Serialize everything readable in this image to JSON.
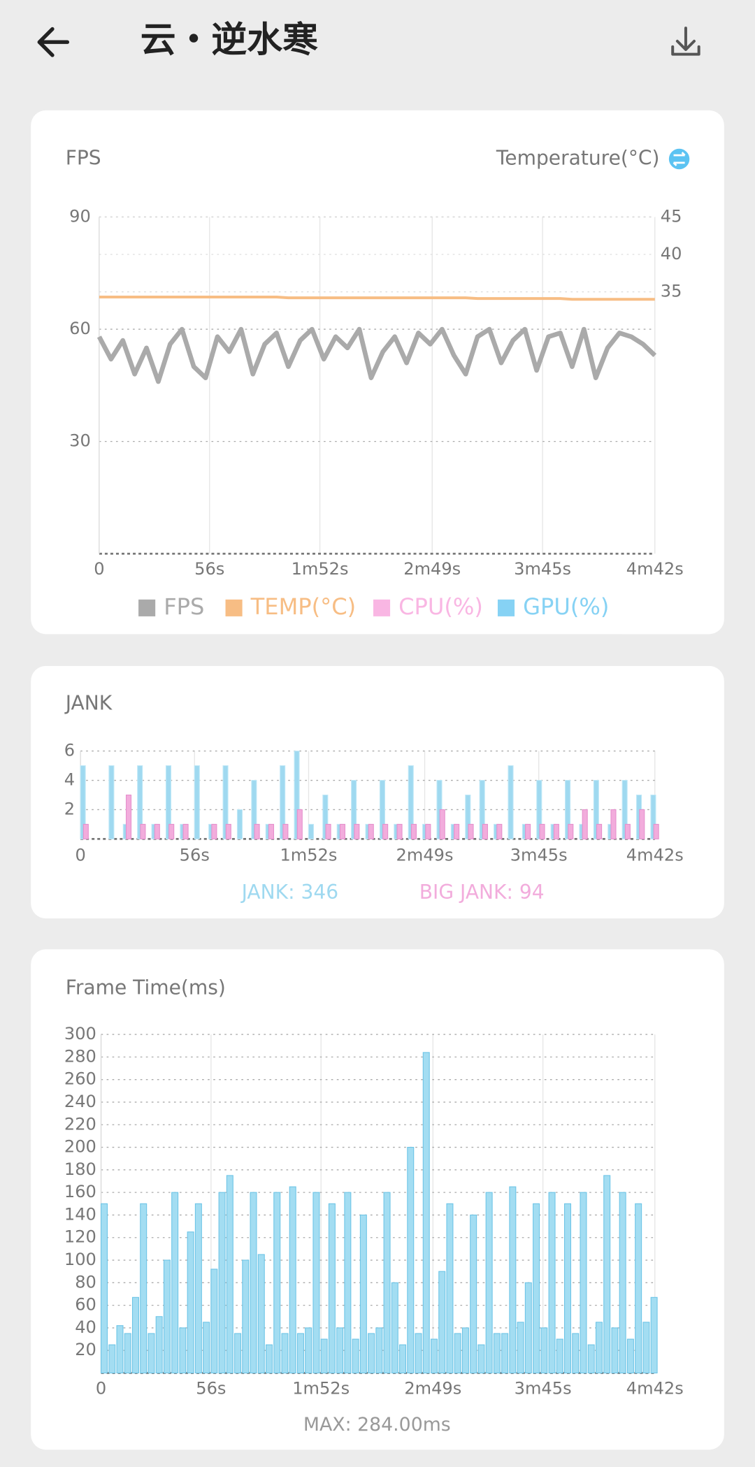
{
  "header": {
    "title": "云・逆水寒"
  },
  "chart_data": [
    {
      "type": "line",
      "title": "FPS",
      "y2_label": "Temperature(°C)",
      "x": [
        0,
        6,
        12,
        18,
        24,
        30,
        36,
        42,
        48,
        54,
        60,
        66,
        72,
        78,
        84,
        90,
        96,
        102,
        108,
        114,
        120,
        126,
        132,
        138,
        144,
        150,
        156,
        162,
        168,
        174,
        180,
        186,
        192,
        198,
        204,
        210,
        216,
        222,
        228,
        234,
        240,
        246,
        252,
        258,
        264,
        270,
        276,
        282
      ],
      "xlim": [
        0,
        282
      ],
      "xticks": [
        0,
        {
          "value": 56,
          "label": "56s"
        },
        {
          "value": 112,
          "label": "1m52s"
        },
        {
          "value": 169,
          "label": "2m49s"
        },
        {
          "value": 225,
          "label": "3m45s"
        },
        {
          "value": 282,
          "label": "4m42s"
        }
      ],
      "ylim": [
        0,
        90
      ],
      "yticks": [
        30,
        60,
        90
      ],
      "y2lim": [
        0,
        45
      ],
      "y2ticks": [
        35,
        40,
        45
      ],
      "grid": true,
      "legend": "bottom",
      "series": [
        {
          "name": "FPS",
          "color": "#aaaaaa",
          "values": [
            58,
            52,
            57,
            48,
            55,
            46,
            56,
            60,
            50,
            47,
            58,
            54,
            60,
            48,
            56,
            59,
            50,
            57,
            60,
            52,
            58,
            55,
            60,
            47,
            54,
            58,
            51,
            59,
            56,
            60,
            53,
            48,
            58,
            60,
            51,
            57,
            60,
            49,
            58,
            59,
            50,
            60,
            47,
            55,
            59,
            58,
            56,
            53
          ]
        },
        {
          "name": "TEMP(°C)",
          "color": "#f7bd84",
          "axis": "y2",
          "values": [
            34.3,
            34.3,
            34.3,
            34.3,
            34.3,
            34.3,
            34.3,
            34.3,
            34.3,
            34.3,
            34.3,
            34.3,
            34.3,
            34.3,
            34.3,
            34.3,
            34.2,
            34.2,
            34.2,
            34.2,
            34.2,
            34.2,
            34.2,
            34.2,
            34.2,
            34.2,
            34.2,
            34.2,
            34.2,
            34.2,
            34.2,
            34.2,
            34.1,
            34.1,
            34.1,
            34.1,
            34.1,
            34.1,
            34.1,
            34.1,
            34.0,
            34.0,
            34.0,
            34.0,
            34.0,
            34.0,
            34.0,
            34.0
          ]
        },
        {
          "name": "CPU(%)",
          "color": "#f9b6e3",
          "values": [
            null,
            null,
            null,
            null,
            null,
            null,
            null,
            null,
            null,
            null,
            null,
            null,
            null,
            null,
            null,
            null,
            null,
            null,
            null,
            null,
            null,
            null,
            null,
            null,
            null,
            null,
            null,
            null,
            null,
            null,
            null,
            null,
            null,
            null,
            null,
            null,
            null,
            null,
            null,
            null,
            null,
            null,
            null,
            null,
            null,
            null,
            null,
            null
          ]
        },
        {
          "name": "GPU(%)",
          "color": "#86d2f4",
          "values": [
            null,
            null,
            null,
            null,
            null,
            null,
            null,
            null,
            null,
            null,
            null,
            null,
            null,
            null,
            null,
            null,
            null,
            null,
            null,
            null,
            null,
            null,
            null,
            null,
            null,
            null,
            null,
            null,
            null,
            null,
            null,
            null,
            null,
            null,
            null,
            null,
            null,
            null,
            null,
            null,
            null,
            null,
            null,
            null,
            null,
            null,
            null,
            null
          ]
        }
      ]
    },
    {
      "type": "bar",
      "title": "JANK",
      "x": [
        0,
        7,
        14,
        21,
        28,
        35,
        42,
        49,
        56,
        63,
        70,
        77,
        84,
        91,
        98,
        105,
        112,
        119,
        126,
        133,
        140,
        147,
        154,
        161,
        168,
        175,
        182,
        189,
        196,
        203,
        210,
        217,
        224,
        231,
        238,
        245,
        252,
        259,
        266,
        273,
        280
      ],
      "xlim": [
        0,
        282
      ],
      "xticks": [
        0,
        {
          "value": 56,
          "label": "56s"
        },
        {
          "value": 112,
          "label": "1m52s"
        },
        {
          "value": 169,
          "label": "2m49s"
        },
        {
          "value": 225,
          "label": "3m45s"
        },
        {
          "value": 282,
          "label": "4m42s"
        }
      ],
      "ylim": [
        0,
        6
      ],
      "yticks": [
        2,
        4,
        6
      ],
      "grid": true,
      "legend": "bottom",
      "series": [
        {
          "name": "JANK: 346",
          "color": "#9fd9f0",
          "values": [
            5,
            0,
            5,
            1,
            5,
            1,
            5,
            1,
            5,
            1,
            5,
            2,
            4,
            1,
            5,
            6,
            1,
            3,
            1,
            4,
            1,
            4,
            1,
            5,
            1,
            4,
            1,
            3,
            4,
            1,
            5,
            1,
            4,
            1,
            4,
            1,
            4,
            1,
            4,
            3,
            3
          ]
        },
        {
          "name": "BIG JANK: 94",
          "color": "#f2acdc",
          "values": [
            1,
            0,
            0,
            3,
            1,
            1,
            1,
            1,
            0,
            1,
            1,
            0,
            1,
            1,
            1,
            2,
            0,
            1,
            1,
            1,
            1,
            1,
            1,
            1,
            1,
            2,
            1,
            1,
            1,
            1,
            0,
            1,
            1,
            1,
            1,
            2,
            1,
            2,
            1,
            2,
            1
          ]
        }
      ]
    },
    {
      "type": "bar",
      "title": "Frame Time(ms)",
      "max_label": "MAX: 284.00ms",
      "color": "#a3ddf2",
      "x": [
        0,
        4,
        8,
        12,
        16,
        20,
        24,
        28,
        32,
        36,
        40,
        44,
        48,
        52,
        56,
        60,
        64,
        68,
        72,
        76,
        80,
        84,
        88,
        92,
        96,
        100,
        104,
        108,
        112,
        116,
        120,
        124,
        128,
        132,
        136,
        140,
        144,
        148,
        152,
        156,
        160,
        164,
        168,
        172,
        176,
        180,
        184,
        188,
        192,
        196,
        200,
        204,
        208,
        212,
        216,
        220,
        224,
        228,
        232,
        236,
        240,
        244,
        248,
        252,
        256,
        260,
        264,
        268,
        272,
        276,
        280
      ],
      "values": [
        150,
        25,
        42,
        35,
        67,
        150,
        35,
        50,
        100,
        160,
        40,
        125,
        150,
        45,
        92,
        160,
        175,
        35,
        100,
        160,
        105,
        25,
        160,
        35,
        165,
        35,
        40,
        160,
        30,
        150,
        40,
        160,
        30,
        140,
        35,
        40,
        160,
        80,
        25,
        200,
        35,
        284,
        30,
        90,
        150,
        35,
        40,
        140,
        25,
        160,
        35,
        35,
        165,
        45,
        80,
        150,
        40,
        160,
        30,
        150,
        35,
        160,
        25,
        45,
        175,
        40,
        160,
        30,
        150,
        45,
        67
      ],
      "xlim": [
        0,
        282
      ],
      "xticks": [
        0,
        {
          "value": 56,
          "label": "56s"
        },
        {
          "value": 112,
          "label": "1m52s"
        },
        {
          "value": 169,
          "label": "2m49s"
        },
        {
          "value": 225,
          "label": "3m45s"
        },
        {
          "value": 282,
          "label": "4m42s"
        }
      ],
      "ylim": [
        0,
        300
      ],
      "yticks": [
        20,
        40,
        60,
        80,
        100,
        120,
        140,
        160,
        180,
        200,
        220,
        240,
        260,
        280,
        300
      ],
      "grid": true
    }
  ]
}
